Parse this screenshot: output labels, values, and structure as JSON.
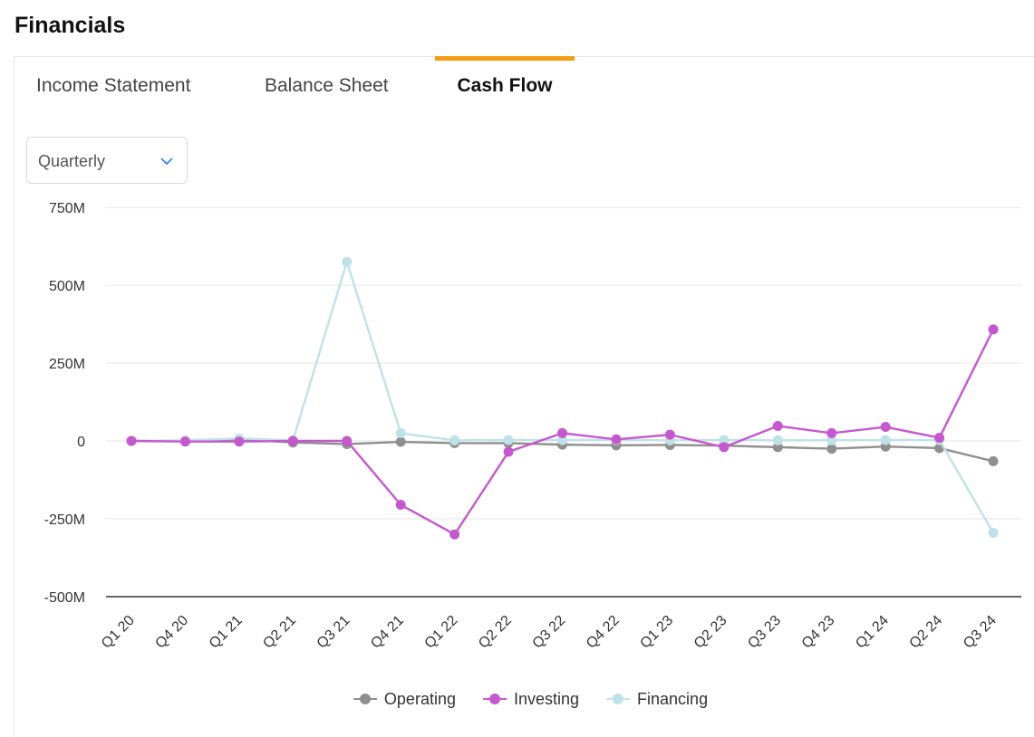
{
  "page": {
    "title": "Financials"
  },
  "tabs": [
    {
      "label": "Income Statement",
      "active": false
    },
    {
      "label": "Balance Sheet",
      "active": false
    },
    {
      "label": "Cash Flow",
      "active": true
    }
  ],
  "period_select": {
    "value": "Quarterly",
    "icon": "chevron-down-icon"
  },
  "colors": {
    "accent": "#f39c12",
    "operating": "#8f8f8f",
    "investing": "#c658cf",
    "financing": "#bfe2e8"
  },
  "chart_data": {
    "type": "line",
    "title": "",
    "xlabel": "",
    "ylabel": "",
    "categories": [
      "Q1 20",
      "Q4 20",
      "Q1 21",
      "Q2 21",
      "Q3 21",
      "Q4 21",
      "Q1 22",
      "Q2 22",
      "Q3 22",
      "Q4 22",
      "Q1 23",
      "Q2 23",
      "Q3 23",
      "Q4 23",
      "Q1 24",
      "Q2 24",
      "Q3 24"
    ],
    "ylim": [
      -500,
      750
    ],
    "yticks": [
      750,
      500,
      250,
      0,
      -250,
      -500
    ],
    "ytick_labels": [
      "750M",
      "500M",
      "250M",
      "0",
      "-250M",
      "-500M"
    ],
    "grid": true,
    "legend_position": "bottom-center",
    "series": [
      {
        "name": "Operating",
        "color": "#8f8f8f",
        "values": [
          0,
          0,
          5,
          -5,
          -10,
          -3,
          -7,
          -7,
          -12,
          -14,
          -13,
          -15,
          -20,
          -25,
          -18,
          -23,
          -65
        ]
      },
      {
        "name": "Investing",
        "color": "#c658cf",
        "values": [
          0,
          -2,
          -2,
          0,
          0,
          -205,
          -300,
          -35,
          25,
          5,
          20,
          -20,
          48,
          25,
          45,
          10,
          358
        ]
      },
      {
        "name": "Financing",
        "color": "#bfe2e8",
        "values": [
          0,
          2,
          8,
          2,
          575,
          25,
          2,
          3,
          3,
          3,
          2,
          3,
          2,
          2,
          3,
          3,
          -295
        ]
      }
    ]
  }
}
